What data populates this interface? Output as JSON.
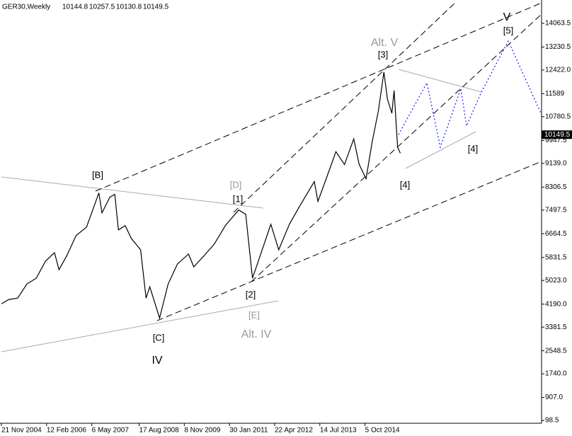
{
  "header": {
    "symbol": "GER30,Weekly",
    "open": 10144.8,
    "high": 10257.5,
    "low": 10130.8,
    "close": 10149.5
  },
  "chart_data": {
    "type": "line",
    "x": [
      "2004-11-21",
      "2005-02-01",
      "2005-05-01",
      "2005-08-01",
      "2005-11-01",
      "2006-02-01",
      "2006-05-01",
      "2006-06-15",
      "2006-09-01",
      "2006-12-01",
      "2007-03-15",
      "2007-07-15",
      "2007-08-15",
      "2007-11-01",
      "2007-12-20",
      "2008-01-25",
      "2008-04-01",
      "2008-06-01",
      "2008-09-01",
      "2008-10-25",
      "2008-12-01",
      "2009-03-08",
      "2009-06-01",
      "2009-09-01",
      "2009-12-20",
      "2010-02-10",
      "2010-05-25",
      "2010-09-01",
      "2010-12-20",
      "2011-05-01",
      "2011-07-10",
      "2011-09-15",
      "2011-12-01",
      "2012-03-15",
      "2012-06-01",
      "2012-09-15",
      "2012-12-20",
      "2013-05-20",
      "2013-06-25",
      "2013-09-15",
      "2013-12-20",
      "2014-03-15",
      "2014-06-15",
      "2014-08-08",
      "2014-10-15",
      "2014-12-15",
      "2015-02-15",
      "2015-04-10",
      "2015-05-15",
      "2015-06-28",
      "2015-07-20",
      "2015-08-24",
      "2015-09-20"
    ],
    "series": [
      {
        "name": "GER30",
        "color": "#000000",
        "values": [
          4200,
          4350,
          4400,
          4900,
          5100,
          5700,
          6000,
          5400,
          5900,
          6600,
          6900,
          8100,
          7400,
          7950,
          8050,
          6800,
          6950,
          6500,
          6100,
          4400,
          4800,
          3700,
          4900,
          5600,
          5950,
          5500,
          5900,
          6300,
          6950,
          7500,
          7350,
          5100,
          5900,
          7000,
          6100,
          7000,
          7600,
          8500,
          7800,
          8600,
          9550,
          9100,
          10000,
          9100,
          8600,
          9900,
          11000,
          12350,
          11400,
          10900,
          11700,
          9700,
          9500
        ]
      }
    ],
    "xlim": [
      "2004-11-21",
      "2019-07-21"
    ],
    "ylim": [
      0,
      14885
    ],
    "xticks": [
      {
        "value": "2004-11-21",
        "label": "21 Nov 2004"
      },
      {
        "value": "2006-02-12",
        "label": "12 Feb 2006"
      },
      {
        "value": "2007-05-06",
        "label": "6 May 2007"
      },
      {
        "value": "2008-08-17",
        "label": "17 Aug 2008"
      },
      {
        "value": "2009-11-08",
        "label": "8 Nov 2009"
      },
      {
        "value": "2011-01-30",
        "label": "30 Jan 2011"
      },
      {
        "value": "2012-04-22",
        "label": "22 Apr 2012"
      },
      {
        "value": "2013-07-14",
        "label": "14 Jul 2013"
      },
      {
        "value": "2014-10-05",
        "label": "5 Oct 2014"
      }
    ],
    "yticks": [
      14063.5,
      13230.5,
      {
        "value": 12422,
        "label": "12422.0"
      },
      11589.0,
      10780.5,
      9947.5,
      {
        "value": 9139,
        "label": "9139.0"
      },
      8306.5,
      7497.5,
      6664.5,
      5831.5,
      {
        "value": 5023,
        "label": "5023.0"
      },
      {
        "value": 4190,
        "label": "4190.0"
      },
      3381.5,
      2548.5,
      {
        "value": 1740,
        "label": "1740.0"
      },
      {
        "value": 907,
        "label": "907.0"
      },
      98.5
    ]
  },
  "annotations": [
    "[B]",
    "[D]",
    "[1]",
    "[C]",
    "IV",
    "[2]",
    "[E]",
    "Alt. IV",
    "Alt. V",
    "[3]",
    "[4]",
    "[4]",
    "[5]",
    "V"
  ]
}
